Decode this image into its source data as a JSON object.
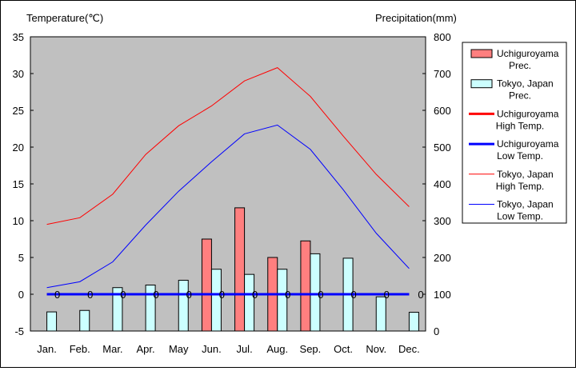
{
  "chart_data": {
    "type": "bar+line",
    "left_axis_label": "Temperature(℃)",
    "right_axis_label": "Precipitation(mm)",
    "categories": [
      "Jan.",
      "Feb.",
      "Mar.",
      "Apr.",
      "May",
      "Jun.",
      "Jul.",
      "Aug.",
      "Sep.",
      "Oct.",
      "Nov.",
      "Dec."
    ],
    "left_axis": {
      "min": -5,
      "max": 35,
      "ticks": [
        -5,
        0,
        5,
        10,
        15,
        20,
        25,
        30,
        35
      ]
    },
    "right_axis": {
      "min": 0,
      "max": 800,
      "ticks": [
        0,
        100,
        200,
        300,
        400,
        500,
        600,
        700,
        800
      ]
    },
    "grid": false,
    "plot_background": "#c0c0c0",
    "legend_placement": "right",
    "precipitation_series": [
      {
        "name": "Uchiguroyama Prec.",
        "color": "#ff7f7f",
        "values": [
          0,
          0,
          0,
          0,
          0,
          250,
          335,
          200,
          245,
          0,
          0,
          0
        ]
      },
      {
        "name": "Tokyo, Japan Prec.",
        "color": "#ccffff",
        "values": [
          52,
          56,
          118,
          125,
          138,
          168,
          154,
          168,
          210,
          198,
          93,
          51
        ]
      }
    ],
    "temperature_series": [
      {
        "name": "Uchiguroyama High Temp.",
        "color": "#ff0000",
        "width": "thick",
        "values": [
          0,
          0,
          0,
          0,
          0,
          0,
          0,
          0,
          0,
          0,
          0,
          0
        ]
      },
      {
        "name": "Uchiguroyama Low Temp.",
        "color": "#0000ff",
        "width": "thick",
        "values": [
          0,
          0,
          0,
          0,
          0,
          0,
          0,
          0,
          0,
          0,
          0,
          0
        ]
      },
      {
        "name": "Tokyo, Japan High Temp.",
        "color": "#ff0000",
        "width": "thin",
        "values": [
          9.5,
          10.4,
          13.6,
          19.0,
          22.9,
          25.6,
          29.0,
          30.8,
          26.9,
          21.5,
          16.3,
          11.9
        ]
      },
      {
        "name": "Tokyo, Japan Low Temp.",
        "color": "#0000ff",
        "width": "thin",
        "values": [
          0.9,
          1.7,
          4.4,
          9.4,
          14.0,
          18.0,
          21.8,
          23.0,
          19.7,
          14.2,
          8.3,
          3.5
        ]
      }
    ],
    "zero_value_labels": [
      "0",
      "0",
      "0",
      "0",
      "0",
      "0",
      "0",
      "0",
      "0",
      "0",
      "0",
      "0"
    ],
    "legend": [
      {
        "lines": [
          "Uchiguroyama",
          "Prec."
        ],
        "kind": "box",
        "color": "#ff7f7f"
      },
      {
        "lines": [
          "Tokyo, Japan",
          "Prec."
        ],
        "kind": "box",
        "color": "#ccffff"
      },
      {
        "lines": [
          "Uchiguroyama",
          "High Temp."
        ],
        "kind": "line",
        "color": "#ff0000",
        "width": "thick"
      },
      {
        "lines": [
          "Uchiguroyama",
          "Low Temp."
        ],
        "kind": "line",
        "color": "#0000ff",
        "width": "thick"
      },
      {
        "lines": [
          "Tokyo, Japan",
          "High Temp."
        ],
        "kind": "line",
        "color": "#ff0000",
        "width": "thin"
      },
      {
        "lines": [
          "Tokyo, Japan",
          "Low Temp."
        ],
        "kind": "line",
        "color": "#0000ff",
        "width": "thin"
      }
    ]
  }
}
